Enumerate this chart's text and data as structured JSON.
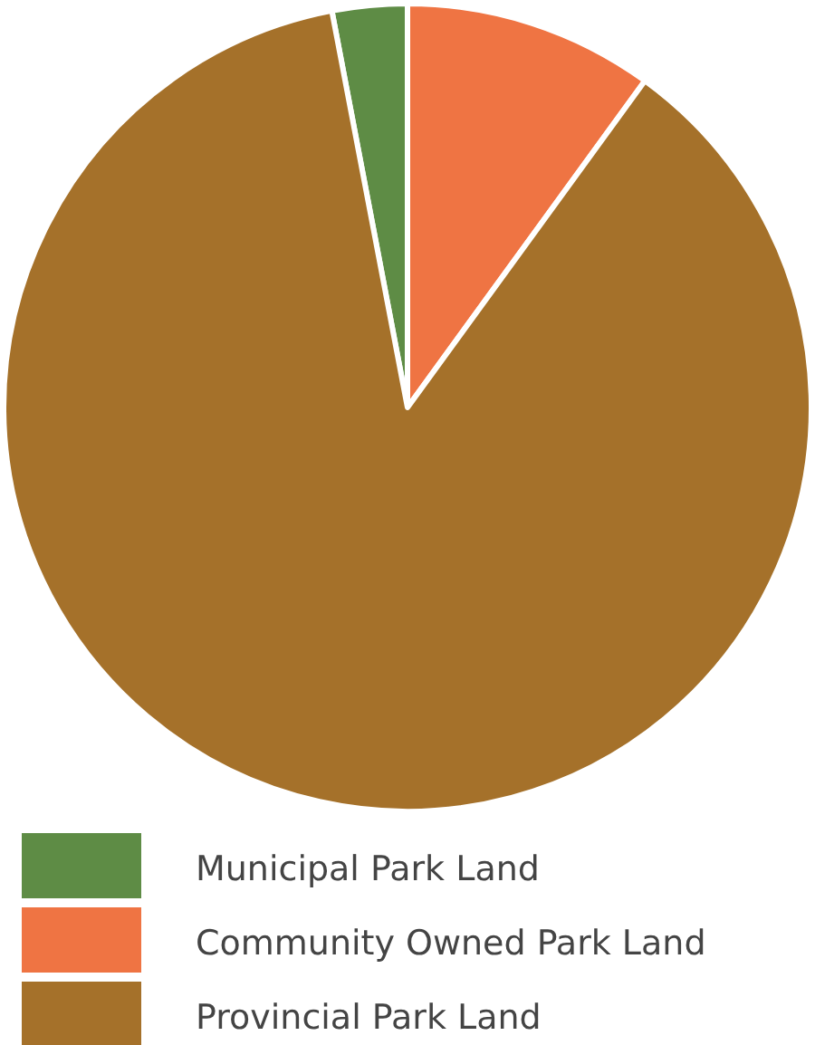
{
  "chart_data": {
    "type": "pie",
    "categories": [
      "Municipal Park Land",
      "Community Owned Park Land",
      "Provincial Park Land"
    ],
    "values": [
      3,
      10,
      87
    ],
    "colors": [
      "#5e8c45",
      "#ef7443",
      "#a5712a"
    ],
    "legend": "bottom left"
  }
}
